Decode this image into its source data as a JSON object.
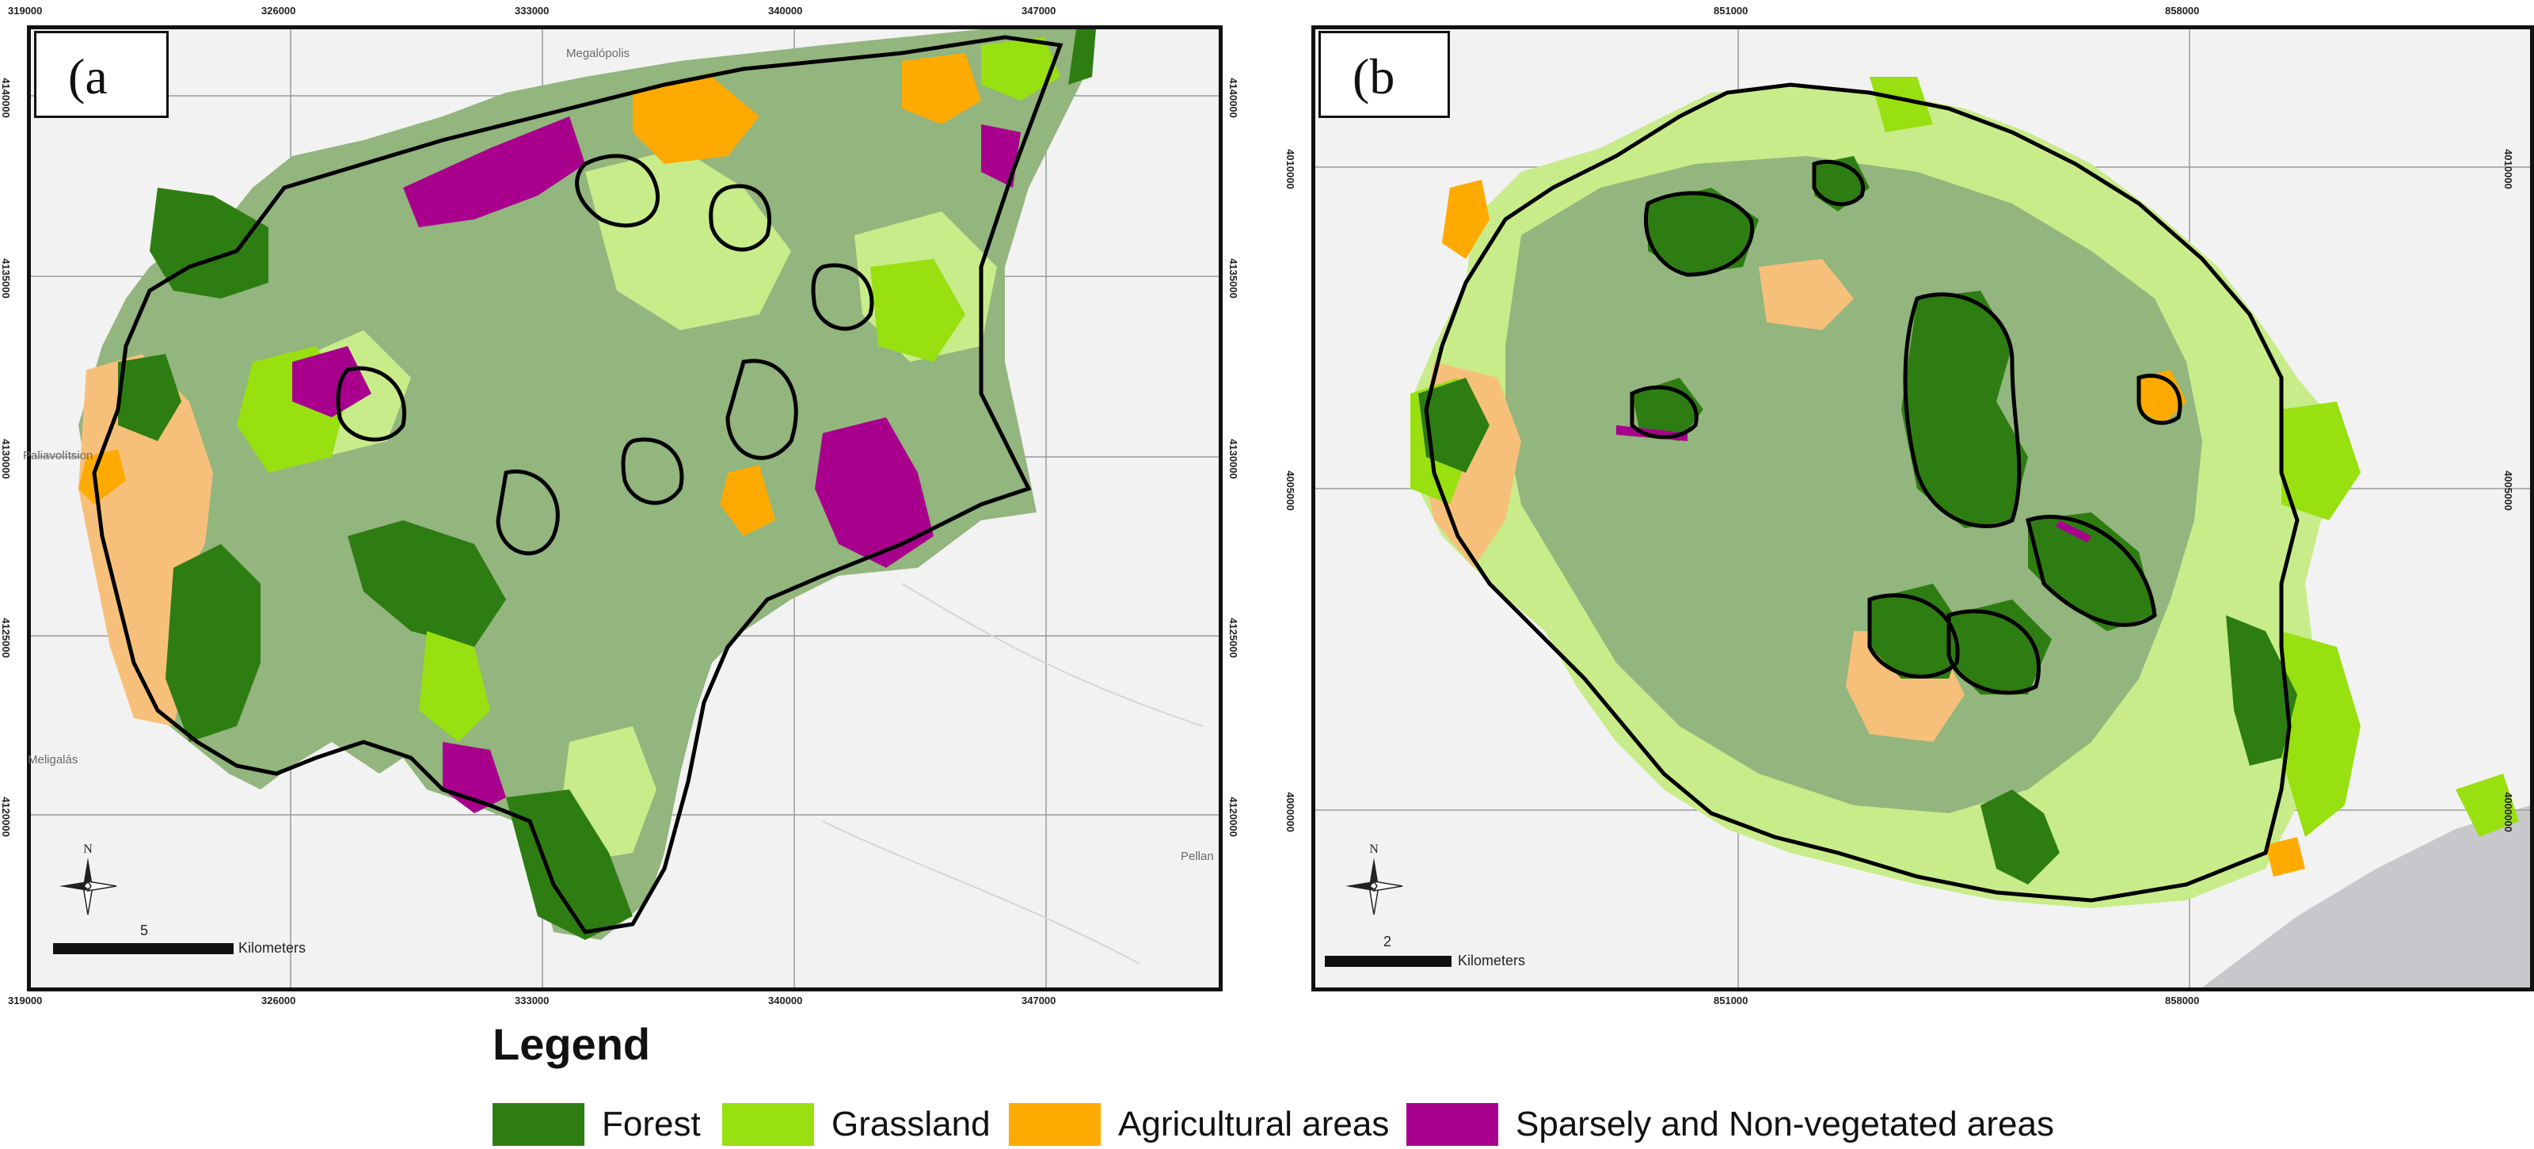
{
  "panels": [
    {
      "label": "(a",
      "ticks_top": [
        "319000",
        "326000",
        "333000",
        "340000",
        "347000"
      ],
      "ticks_bottom": [
        "319000",
        "326000",
        "333000",
        "340000",
        "347000"
      ],
      "ticks_left": [
        "4140000",
        "4135000",
        "4130000",
        "4125000",
        "4120000"
      ],
      "ticks_right": [
        "4140000",
        "4135000",
        "4130000",
        "4125000",
        "4120000"
      ],
      "places": [
        "Megalópolis",
        "Paliavolítsion",
        "Meligalás",
        "Pellan"
      ],
      "scale_number": "5",
      "scale_unit": "Kilometers",
      "north": "N"
    },
    {
      "label": "(b",
      "ticks_top": [
        "851000",
        "858000"
      ],
      "ticks_bottom": [
        "851000",
        "858000"
      ],
      "ticks_left": [
        "4010000",
        "4005000",
        "4000000"
      ],
      "ticks_right": [
        "4010000",
        "4005000",
        "4000000"
      ],
      "scale_number": "2",
      "scale_unit": "Kilometers",
      "north": "N"
    }
  ],
  "legend": {
    "title": "Legend",
    "items": [
      {
        "label": "Forest",
        "color": "#2e7d12"
      },
      {
        "label": "Grassland",
        "color": "#98e010"
      },
      {
        "label": "Agricultural areas",
        "color": "#ffaa00"
      },
      {
        "label": "Sparsely and Non-vegetated areas",
        "color": "#a8008c"
      }
    ]
  },
  "colors": {
    "mixed_vegetation": "#93b57e",
    "light_grassland": "#c8ec8a",
    "light_agri": "#f7c07a",
    "basemap": "#f2f2f2",
    "sea": "#c8c8cc",
    "boundary": "#000000"
  }
}
